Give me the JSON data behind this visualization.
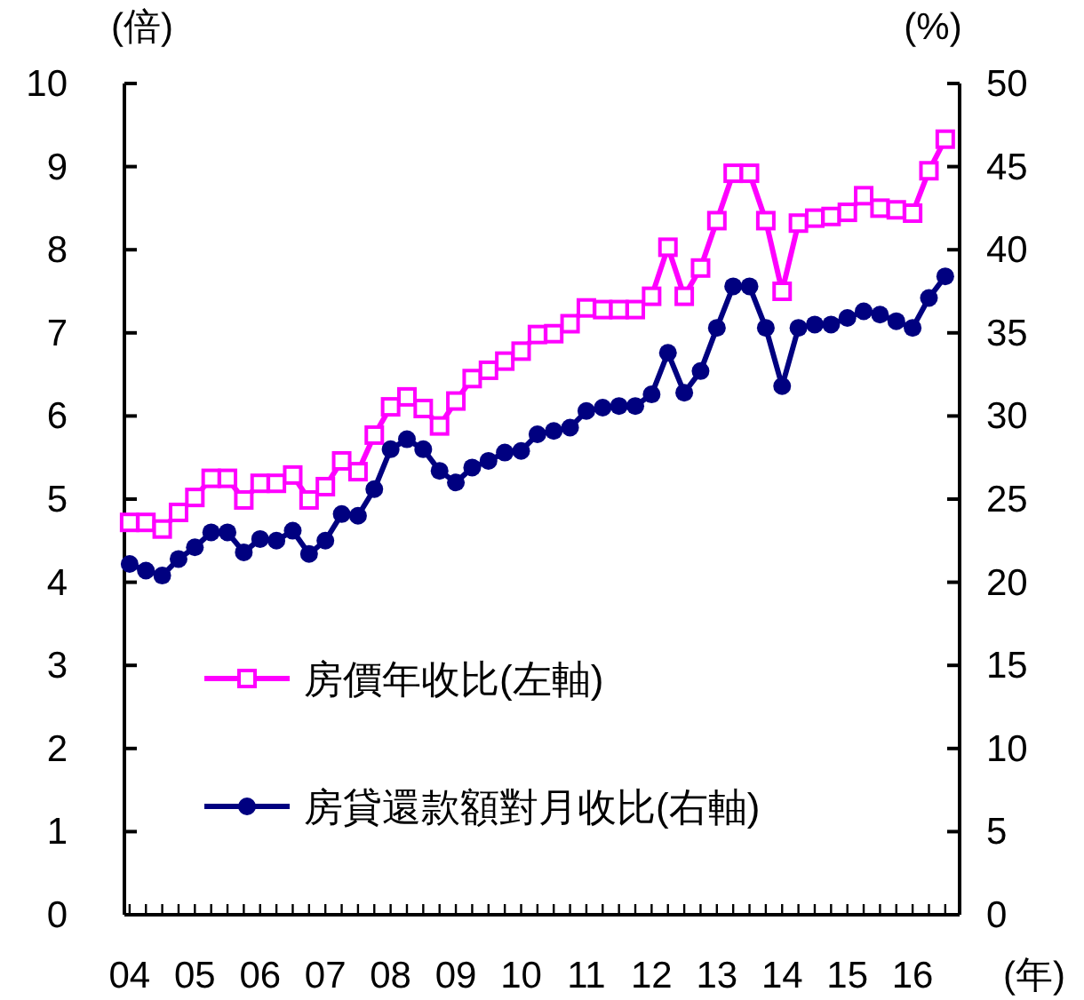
{
  "chart_data": {
    "type": "line",
    "ylabel": "(倍)",
    "y2label": "(%)",
    "xlabel": "(年)",
    "x": [
      2004,
      2004.25,
      2004.5,
      2004.75,
      2005,
      2005.25,
      2005.5,
      2005.75,
      2006,
      2006.25,
      2006.5,
      2006.75,
      2007,
      2007.25,
      2007.5,
      2007.75,
      2008,
      2008.25,
      2008.5,
      2008.75,
      2009,
      2009.25,
      2009.5,
      2009.75,
      2010,
      2010.25,
      2010.5,
      2010.75,
      2011,
      2011.25,
      2011.5,
      2011.75,
      2012,
      2012.25,
      2012.5,
      2012.75,
      2013,
      2013.25,
      2013.5,
      2013.75,
      2014,
      2014.25,
      2014.5,
      2014.75,
      2015,
      2015.25,
      2015.5,
      2015.75,
      2016,
      2016.25,
      2016.5
    ],
    "series": [
      {
        "name": "房價年收比(左軸)",
        "color": "#ff00ff",
        "marker": "square",
        "values": [
          4.72,
          4.72,
          4.64,
          4.84,
          5.02,
          5.25,
          5.25,
          4.99,
          5.19,
          5.19,
          5.29,
          4.99,
          5.15,
          5.46,
          5.33,
          5.77,
          6.11,
          6.23,
          6.09,
          5.88,
          6.18,
          6.45,
          6.55,
          6.66,
          6.78,
          6.98,
          6.99,
          7.11,
          7.3,
          7.28,
          7.28,
          7.28,
          7.44,
          8.03,
          7.44,
          7.78,
          8.35,
          8.92,
          8.92,
          8.35,
          7.5,
          8.32,
          8.38,
          8.4,
          8.45,
          8.65,
          8.5,
          8.48,
          8.44,
          8.95,
          9.33
        ]
      },
      {
        "name": "房貸還款額對月收比(右軸)",
        "color": "#000080",
        "marker": "circle",
        "axis": "y2",
        "values": [
          21.1,
          20.7,
          20.4,
          21.4,
          22.1,
          23.0,
          23.0,
          21.8,
          22.6,
          22.5,
          23.1,
          21.7,
          22.5,
          24.1,
          24.0,
          25.6,
          28.0,
          28.6,
          28.0,
          26.7,
          26.0,
          26.9,
          27.3,
          27.8,
          27.9,
          28.9,
          29.1,
          29.3,
          30.3,
          30.5,
          30.6,
          30.6,
          31.3,
          33.8,
          31.4,
          32.7,
          35.3,
          37.8,
          37.8,
          35.3,
          31.8,
          35.3,
          35.5,
          35.5,
          35.9,
          36.3,
          36.1,
          35.7,
          35.3,
          37.1,
          38.4
        ]
      }
    ],
    "xlim": [
      2003.92,
      2016.72
    ],
    "xticks": [
      {
        "value": 2004,
        "label": "04"
      },
      {
        "value": 2004.25,
        "label": null
      },
      {
        "value": 2004.5,
        "label": null
      },
      {
        "value": 2004.75,
        "label": null
      },
      {
        "value": 2005,
        "label": "05"
      },
      {
        "value": 2005.25,
        "label": null
      },
      {
        "value": 2005.5,
        "label": null
      },
      {
        "value": 2005.75,
        "label": null
      },
      {
        "value": 2006,
        "label": "06"
      },
      {
        "value": 2006.25,
        "label": null
      },
      {
        "value": 2006.5,
        "label": null
      },
      {
        "value": 2006.75,
        "label": null
      },
      {
        "value": 2007,
        "label": "07"
      },
      {
        "value": 2007.25,
        "label": null
      },
      {
        "value": 2007.5,
        "label": null
      },
      {
        "value": 2007.75,
        "label": null
      },
      {
        "value": 2008,
        "label": "08"
      },
      {
        "value": 2008.25,
        "label": null
      },
      {
        "value": 2008.5,
        "label": null
      },
      {
        "value": 2008.75,
        "label": null
      },
      {
        "value": 2009,
        "label": "09"
      },
      {
        "value": 2009.25,
        "label": null
      },
      {
        "value": 2009.5,
        "label": null
      },
      {
        "value": 2009.75,
        "label": null
      },
      {
        "value": 2010,
        "label": "10"
      },
      {
        "value": 2010.25,
        "label": null
      },
      {
        "value": 2010.5,
        "label": null
      },
      {
        "value": 2010.75,
        "label": null
      },
      {
        "value": 2011,
        "label": "11"
      },
      {
        "value": 2011.25,
        "label": null
      },
      {
        "value": 2011.5,
        "label": null
      },
      {
        "value": 2011.75,
        "label": null
      },
      {
        "value": 2012,
        "label": "12"
      },
      {
        "value": 2012.25,
        "label": null
      },
      {
        "value": 2012.5,
        "label": null
      },
      {
        "value": 2012.75,
        "label": null
      },
      {
        "value": 2013,
        "label": "13"
      },
      {
        "value": 2013.25,
        "label": null
      },
      {
        "value": 2013.5,
        "label": null
      },
      {
        "value": 2013.75,
        "label": null
      },
      {
        "value": 2014,
        "label": "14"
      },
      {
        "value": 2014.25,
        "label": null
      },
      {
        "value": 2014.5,
        "label": null
      },
      {
        "value": 2014.75,
        "label": null
      },
      {
        "value": 2015,
        "label": "15"
      },
      {
        "value": 2015.25,
        "label": null
      },
      {
        "value": 2015.5,
        "label": null
      },
      {
        "value": 2015.75,
        "label": null
      },
      {
        "value": 2016,
        "label": "16"
      },
      {
        "value": 2016.25,
        "label": null
      },
      {
        "value": 2016.5,
        "label": null
      }
    ],
    "ylim": [
      0,
      10
    ],
    "yticks": [
      0,
      1,
      2,
      3,
      4,
      5,
      6,
      7,
      8,
      9,
      10
    ],
    "y2lim": [
      0,
      50
    ],
    "y2ticks": [
      0,
      5,
      10,
      15,
      20,
      25,
      30,
      35,
      40,
      45,
      50
    ],
    "grid": false,
    "legend": "bottom left",
    "line_style": "solid"
  }
}
